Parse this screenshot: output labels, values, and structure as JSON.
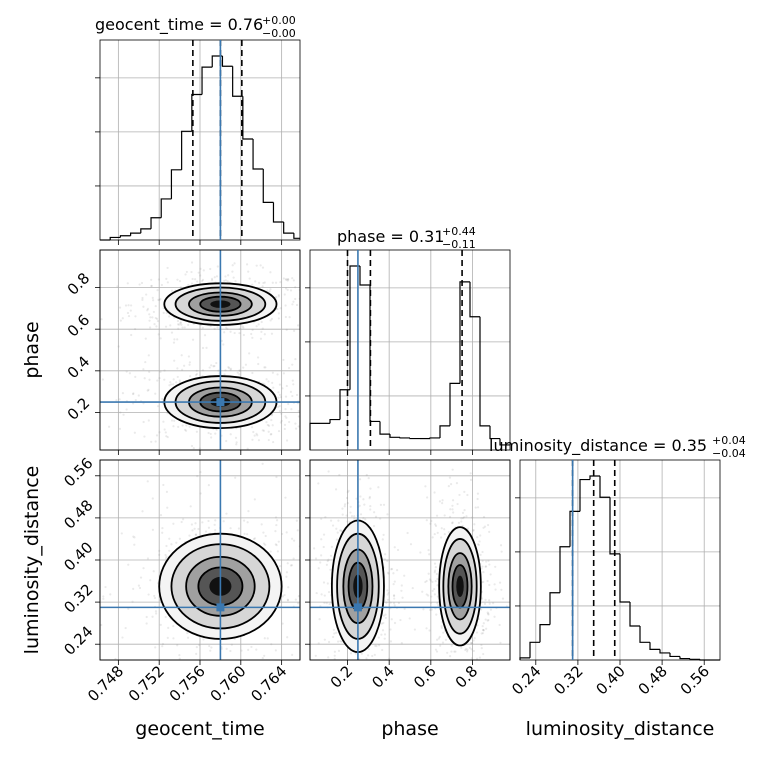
{
  "colors": {
    "truth": "#3b78b0",
    "hist": "#000000",
    "scatter": "#888888",
    "grid": "#b0b0b0"
  },
  "titles": {
    "geocent_time": {
      "name": "geocent_time",
      "median": "0.76",
      "plus": "+0.00",
      "minus": "−0.00"
    },
    "phase": {
      "name": "phase",
      "median": "0.31",
      "plus": "+0.44",
      "minus": "−0.11"
    },
    "luminosity_distance": {
      "name": "luminosity_distance",
      "median": "0.35",
      "plus": "+0.04",
      "minus": "−0.04"
    }
  },
  "axis_labels": {
    "x_geocent": "geocent_time",
    "x_phase": "phase",
    "x_dist": "luminosity_distance",
    "y_phase": "phase",
    "y_dist": "luminosity_distance"
  },
  "chart_data": {
    "type": "corner",
    "parameters": [
      "geocent_time",
      "phase",
      "luminosity_distance"
    ],
    "truths": {
      "geocent_time": 0.758,
      "phase": 0.25,
      "luminosity_distance": 0.31
    },
    "ranges": {
      "geocent_time": [
        0.7462,
        0.7658
      ],
      "phase": [
        0.02,
        0.98
      ],
      "luminosity_distance": [
        0.21,
        0.59
      ]
    },
    "ticks": {
      "geocent_time": [
        "0.748",
        "0.752",
        "0.756",
        "0.760",
        "0.764"
      ],
      "phase": [
        "0.2",
        "0.4",
        "0.6",
        "0.8"
      ],
      "luminosity_distance": [
        "0.24",
        "0.32",
        "0.40",
        "0.48",
        "0.56"
      ]
    },
    "quantiles": {
      "geocent_time": [
        0.7553,
        0.758,
        0.7601
      ],
      "phase": [
        0.2,
        0.31,
        0.75
      ],
      "luminosity_distance": [
        0.31,
        0.35,
        0.39
      ]
    },
    "histograms": {
      "geocent_time": {
        "edges": [
          0.7462,
          0.7472,
          0.7482,
          0.7492,
          0.7502,
          0.7512,
          0.7522,
          0.7532,
          0.7542,
          0.7552,
          0.7562,
          0.7572,
          0.7582,
          0.7592,
          0.7602,
          0.7612,
          0.7622,
          0.7632,
          0.7642,
          0.7652,
          0.7658
        ],
        "counts": [
          0,
          3,
          5,
          8,
          13,
          26,
          48,
          82,
          127,
          170,
          202,
          215,
          203,
          168,
          118,
          83,
          44,
          21,
          8,
          2
        ]
      },
      "phase": {
        "edges": [
          0.02,
          0.068,
          0.116,
          0.164,
          0.212,
          0.26,
          0.308,
          0.356,
          0.404,
          0.452,
          0.5,
          0.548,
          0.596,
          0.644,
          0.692,
          0.74,
          0.788,
          0.836,
          0.884,
          0.932,
          0.98
        ],
        "counts": [
          42,
          42,
          48,
          95,
          290,
          260,
          45,
          25,
          20,
          19,
          18,
          18,
          19,
          38,
          105,
          265,
          210,
          38,
          18,
          8
        ]
      },
      "luminosity_distance": {
        "edges": [
          0.21,
          0.229,
          0.248,
          0.267,
          0.286,
          0.305,
          0.324,
          0.343,
          0.362,
          0.381,
          0.4,
          0.419,
          0.438,
          0.457,
          0.476,
          0.495,
          0.514,
          0.533,
          0.552,
          0.571,
          0.59
        ],
        "counts": [
          3,
          25,
          50,
          95,
          160,
          210,
          255,
          260,
          230,
          150,
          82,
          48,
          25,
          15,
          10,
          5,
          2,
          1,
          0,
          0
        ]
      }
    },
    "density_2d": {
      "geocent_time_vs_phase": {
        "modes": [
          {
            "x": 0.758,
            "y": 0.72,
            "sx": 0.0022,
            "sy": 0.04
          },
          {
            "x": 0.758,
            "y": 0.25,
            "sx": 0.0022,
            "sy": 0.05
          }
        ]
      },
      "geocent_time_vs_luminosity_distance": {
        "modes": [
          {
            "x": 0.758,
            "y": 0.35,
            "sx": 0.0024,
            "sy": 0.04
          }
        ]
      },
      "phase_vs_luminosity_distance": {
        "modes": [
          {
            "x": 0.25,
            "y": 0.35,
            "sx": 0.05,
            "sy": 0.05
          },
          {
            "x": 0.74,
            "y": 0.35,
            "sx": 0.04,
            "sy": 0.045
          }
        ]
      }
    }
  }
}
